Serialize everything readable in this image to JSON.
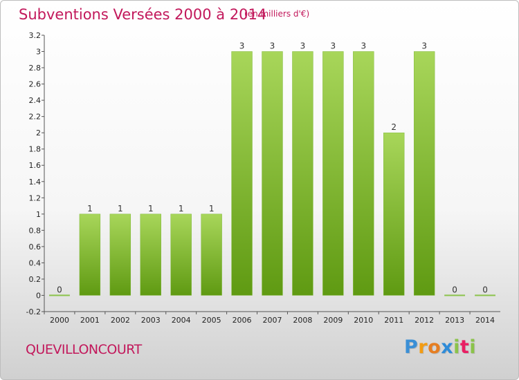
{
  "header": {
    "title": "Subventions Versées 2000 à 2014",
    "subtitle": "(en milliers d'€)"
  },
  "footer": {
    "commune": "QUEVILLONCOURT",
    "logo": {
      "letters": [
        "P",
        "r",
        "o",
        "x",
        "i",
        "t",
        "i"
      ],
      "colors": [
        "#3a8fd6",
        "#f39c12",
        "#e67e22",
        "#2e8bd8",
        "#8bc34a",
        "#e91e63",
        "#8bc34a"
      ]
    }
  },
  "chart_data": {
    "type": "bar",
    "title": "Subventions Versées 2000 à 2014",
    "subtitle": "(en milliers d'€)",
    "categories": [
      "2000",
      "2001",
      "2002",
      "2003",
      "2004",
      "2005",
      "2006",
      "2007",
      "2008",
      "2009",
      "2010",
      "2011",
      "2012",
      "2013",
      "2014"
    ],
    "values": [
      0,
      1,
      1,
      1,
      1,
      1,
      3,
      3,
      3,
      3,
      3,
      2,
      3,
      0,
      0
    ],
    "data_labels": [
      "0",
      "1",
      "1",
      "1",
      "1",
      "1",
      "3",
      "3",
      "3",
      "3",
      "3",
      "2",
      "3",
      "0",
      "0"
    ],
    "y_ticks": [
      "-0.2",
      "0",
      "0.2",
      "0.4",
      "0.6",
      "0.8",
      "1",
      "1.2",
      "1.4",
      "1.6",
      "1.8",
      "2",
      "2.2",
      "2.4",
      "2.6",
      "2.8",
      "3",
      "3.2"
    ],
    "ylim": [
      -0.2,
      3.2
    ],
    "xlabel": "",
    "ylabel": "",
    "grid": false,
    "colors": {
      "bar_light": "#a8d65a",
      "bar_dark": "#5f9a12",
      "zero_line": "#8bc34a",
      "axis": "#555555"
    }
  }
}
